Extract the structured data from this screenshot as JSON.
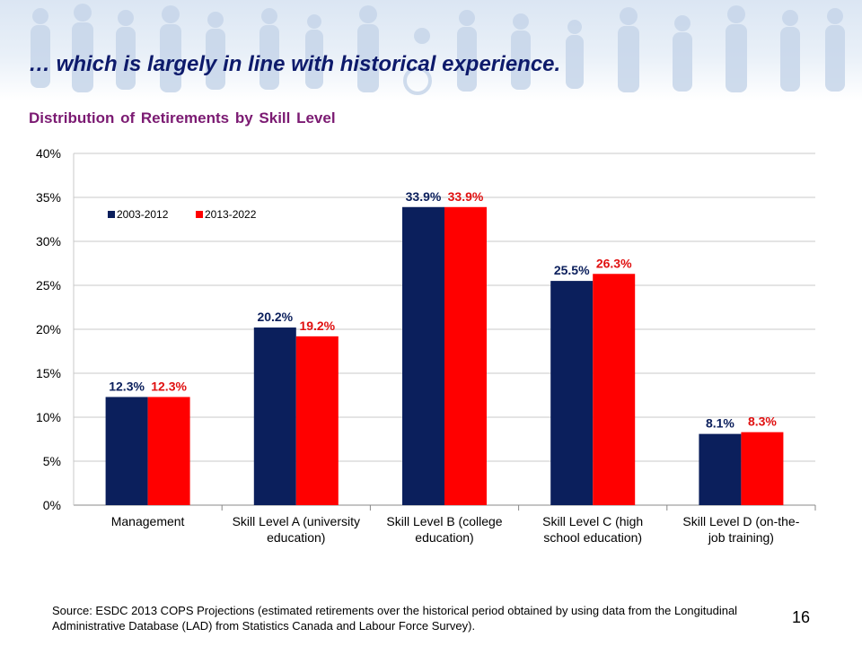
{
  "slide": {
    "title": "… which is largely in line with historical experience.",
    "source": "Source: ESDC 2013 COPS Projections (estimated retirements over the historical period obtained by using data from  the Longitudinal Administrative Database (LAD) from Statistics Canada and Labour Force Survey).",
    "page_number": "16"
  },
  "chart_data": {
    "type": "bar",
    "title": "Distribution  of Retirements by Skill  Level",
    "categories": [
      [
        "Management"
      ],
      [
        "Skill Level A (university",
        "education)"
      ],
      [
        "Skill Level B (college",
        "education)"
      ],
      [
        "Skill Level C (high",
        "school education)"
      ],
      [
        "Skill Level D (on-the-",
        "job training)"
      ]
    ],
    "series": [
      {
        "name": "2003-2012",
        "color": "#0b1f5c",
        "label_color": "#0b1f5c",
        "values": [
          12.3,
          20.2,
          33.9,
          25.5,
          8.1
        ],
        "labels": [
          "12.3%",
          "20.2%",
          "33.9%",
          "25.5%",
          "8.1%"
        ]
      },
      {
        "name": "2013-2022",
        "color": "#ff0000",
        "label_color": "#e01010",
        "values": [
          12.3,
          19.2,
          33.9,
          26.3,
          8.3
        ],
        "labels": [
          "12.3%",
          "19.2%",
          "33.9%",
          "26.3%",
          "8.3%"
        ]
      }
    ],
    "yticks": [
      0,
      5,
      10,
      15,
      20,
      25,
      30,
      35,
      40
    ],
    "ytick_labels": [
      "0%",
      "5%",
      "10%",
      "15%",
      "20%",
      "25%",
      "30%",
      "35%",
      "40%"
    ],
    "ylim": [
      0,
      40
    ],
    "grid": true,
    "legend_position": "top-left"
  }
}
